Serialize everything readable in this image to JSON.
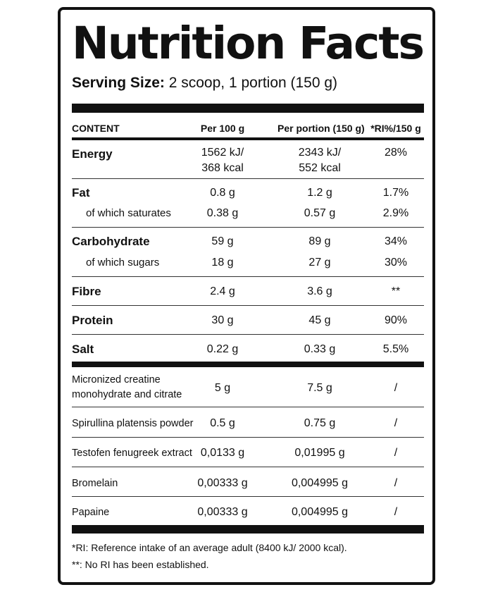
{
  "title": "Nutrition Facts",
  "serving": {
    "label": "Serving Size:",
    "value": "2 scoop, 1 portion (150 g)"
  },
  "columns": [
    "CONTENT",
    "Per 100 g",
    "Per portion (150 g)",
    "*RI%/150 g"
  ],
  "nutrients": [
    {
      "name": "Energy",
      "per100": "1562 kJ/\n368 kcal",
      "perPortion": "2343 kJ/\n552 kcal",
      "ri": "28%"
    },
    {
      "name": "Fat",
      "per100": "0.8 g",
      "perPortion": "1.2 g",
      "ri": "1.7%"
    },
    {
      "name": "of which saturates",
      "per100": "0.38 g",
      "perPortion": "0.57 g",
      "ri": "2.9%"
    },
    {
      "name": "Carbohydrate",
      "per100": "59 g",
      "perPortion": "89 g",
      "ri": "34%"
    },
    {
      "name": "of which sugars",
      "per100": "18 g",
      "perPortion": "27 g",
      "ri": "30%"
    },
    {
      "name": "Fibre",
      "per100": "2.4 g",
      "perPortion": "3.6 g",
      "ri": "**"
    },
    {
      "name": "Protein",
      "per100": "30 g",
      "perPortion": "45 g",
      "ri": "90%"
    },
    {
      "name": "Salt",
      "per100": "0.22 g",
      "perPortion": "0.33 g",
      "ri": "5.5%"
    }
  ],
  "ingredients": [
    {
      "name": "Micronized creatine\nmonohydrate and citrate",
      "per100": "5 g",
      "perPortion": "7.5 g",
      "ri": "/"
    },
    {
      "name": "Spirullina platensis powder",
      "per100": "0.5 g",
      "perPortion": "0.75 g",
      "ri": "/"
    },
    {
      "name": "Testofen fenugreek extract",
      "per100": "0,0133 g",
      "perPortion": "0,01995 g",
      "ri": "/"
    },
    {
      "name": "Bromelain",
      "per100": "0,00333 g",
      "perPortion": "0,004995 g",
      "ri": "/"
    },
    {
      "name": "Papaine",
      "per100": "0,00333 g",
      "perPortion": "0,004995 g",
      "ri": "/"
    }
  ],
  "footnotes": [
    "*RI: Reference intake of an average adult (8400 kJ/ 2000 kcal).",
    "**: No RI has been established."
  ]
}
